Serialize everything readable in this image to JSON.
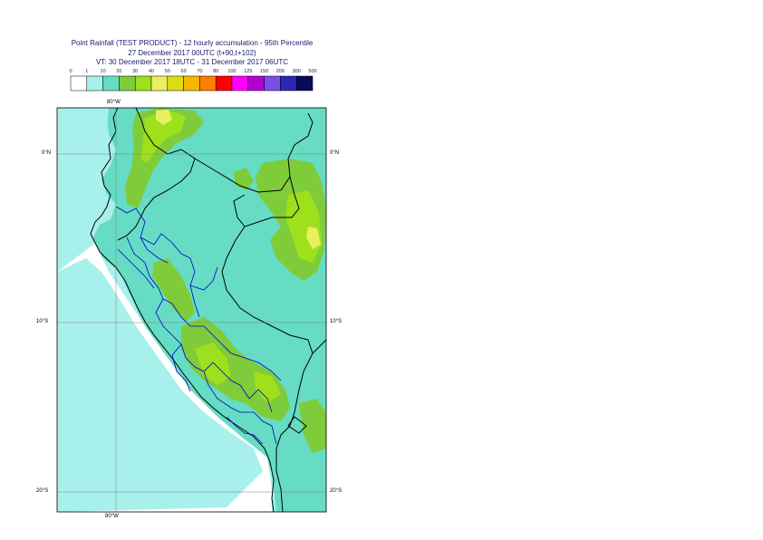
{
  "header": {
    "title_line1": "Point Rainfall (TEST PRODUCT) - 12 hourly accumulation - 95th Percentile",
    "title_line2": "27 December 2017 00UTC (t+90,t+102)",
    "title_line3": "VT: 30 December 2017 18UTC - 31 December 2017 06UTC"
  },
  "legend": {
    "ticks": [
      "0",
      "1",
      "10",
      "20",
      "30",
      "40",
      "50",
      "60",
      "70",
      "80",
      "100",
      "125",
      "150",
      "200",
      "300",
      "500"
    ],
    "colors": [
      "#ffffff",
      "#a8f0ec",
      "#66dcc4",
      "#7fcc3a",
      "#9ee01c",
      "#e8f060",
      "#dcdc14",
      "#f5b800",
      "#ff7f00",
      "#ff0000",
      "#ff00ff",
      "#b400d2",
      "#7850e6",
      "#2828b4",
      "#0a0a5a"
    ]
  },
  "map": {
    "lon_labels": [
      "80°W",
      "80°W"
    ],
    "lat_labels": [
      "0°N",
      "0°N",
      "10°S",
      "10°S",
      "20°S",
      "20°S"
    ],
    "colors": {
      "ocean_fill": "#a8f0ec",
      "low_rain": "#66dcc4",
      "moderate": "#7fcc3a",
      "heavy": "#9ee01c",
      "very_heavy": "#e8f060",
      "country_border": "#000000",
      "region_border": "#0000c8",
      "grid": "#808080"
    }
  }
}
